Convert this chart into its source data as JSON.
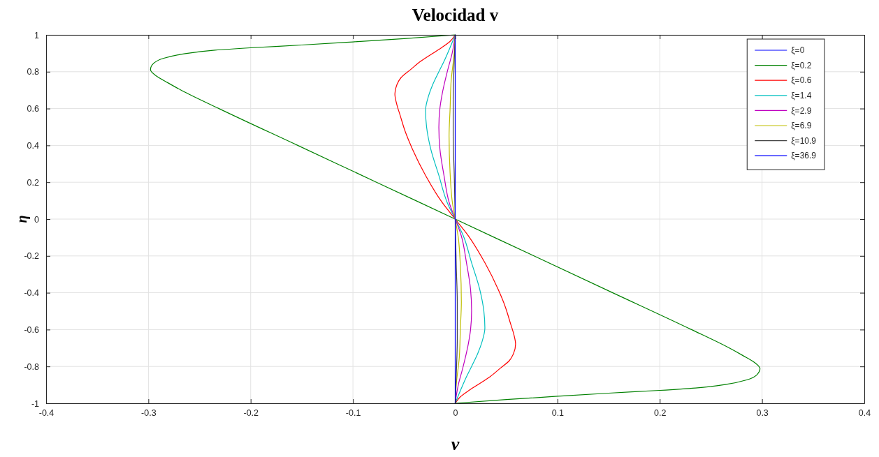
{
  "chart_data": {
    "type": "line",
    "title": "Velocidad v",
    "xlabel": "v",
    "ylabel": "η",
    "xlim": [
      -0.4,
      0.4
    ],
    "xticks": [
      -0.4,
      -0.3,
      -0.2,
      -0.1,
      0,
      0.1,
      0.2,
      0.3,
      0.4
    ],
    "ylim": [
      -1,
      1
    ],
    "yticks": [
      -1,
      -0.8,
      -0.6,
      -0.4,
      -0.2,
      0,
      0.2,
      0.4,
      0.6,
      0.8,
      1
    ],
    "grid": true,
    "legend": "top right",
    "series": [
      {
        "name": "ξ=0",
        "color": "#0000ff",
        "x": [
          null,
          null
        ],
        "values": [
          null,
          null
        ]
      },
      {
        "name": "ξ=0.2",
        "color": "#008000",
        "x": [
          0,
          -0.05,
          -0.1,
          -0.15,
          -0.2,
          -0.235,
          -0.265,
          -0.285,
          -0.295,
          -0.298,
          -0.293,
          -0.281,
          -0.268,
          -0.231,
          -0.154,
          -0.077,
          0,
          0.077,
          0.154,
          0.231,
          0.268,
          0.281,
          0.293,
          0.298,
          0.295,
          0.285,
          0.265,
          0.235,
          0.2,
          0.15,
          0.1,
          0.05,
          0
        ],
        "values": [
          1,
          0.98,
          0.962,
          0.945,
          0.93,
          0.917,
          0.897,
          0.873,
          0.845,
          0.812,
          0.78,
          0.74,
          0.7,
          0.6,
          0.4,
          0.2,
          0,
          -0.2,
          -0.4,
          -0.6,
          -0.7,
          -0.74,
          -0.78,
          -0.812,
          -0.845,
          -0.873,
          -0.897,
          -0.917,
          -0.93,
          -0.945,
          -0.962,
          -0.98,
          -1
        ]
      },
      {
        "name": "ξ=0.6",
        "color": "#ff0000",
        "x": [
          0,
          -0.005,
          -0.013,
          -0.022,
          -0.034,
          -0.044,
          -0.053,
          -0.057,
          -0.059,
          -0.057,
          -0.054,
          -0.049,
          -0.042,
          -0.029,
          -0.013,
          0,
          0.013,
          0.029,
          0.042,
          0.049,
          0.054,
          0.057,
          0.059,
          0.057,
          0.053,
          0.044,
          0.034,
          0.022,
          0.013,
          0.005,
          0
        ],
        "values": [
          1,
          0.965,
          0.932,
          0.9,
          0.856,
          0.81,
          0.768,
          0.73,
          0.679,
          0.62,
          0.566,
          0.477,
          0.382,
          0.237,
          0.092,
          0,
          -0.092,
          -0.237,
          -0.382,
          -0.477,
          -0.566,
          -0.62,
          -0.679,
          -0.73,
          -0.768,
          -0.81,
          -0.856,
          -0.9,
          -0.932,
          -0.965,
          -1
        ]
      },
      {
        "name": "ξ=1.4",
        "color": "#00bfbf",
        "x": [
          0,
          -0.005,
          -0.011,
          -0.016,
          -0.022,
          -0.026,
          -0.029,
          -0.028,
          -0.024,
          -0.016,
          -0.008,
          0,
          0.008,
          0.016,
          0.024,
          0.028,
          0.029,
          0.026,
          0.022,
          0.016,
          0.011,
          0.005,
          0
        ],
        "values": [
          1,
          0.932,
          0.856,
          0.8,
          0.73,
          0.67,
          0.591,
          0.5,
          0.382,
          0.237,
          0.092,
          0,
          -0.092,
          -0.237,
          -0.382,
          -0.5,
          -0.591,
          -0.67,
          -0.73,
          -0.8,
          -0.856,
          -0.932,
          -1
        ]
      },
      {
        "name": "ξ=2.9",
        "color": "#bf00bf",
        "x": [
          0,
          -0.003,
          -0.007,
          -0.013,
          -0.015,
          -0.016,
          -0.015,
          -0.011,
          -0.006,
          0,
          0.006,
          0.011,
          0.015,
          0.016,
          0.015,
          0.013,
          0.007,
          0.003,
          0
        ],
        "values": [
          1,
          0.9,
          0.817,
          0.672,
          0.6,
          0.498,
          0.382,
          0.237,
          0.092,
          0,
          -0.092,
          -0.237,
          -0.382,
          -0.498,
          -0.6,
          -0.672,
          -0.817,
          -0.9,
          -1
        ]
      },
      {
        "name": "ξ=6.9",
        "color": "#bfbf00",
        "x": [
          0,
          -0.001,
          -0.004,
          -0.005,
          -0.006,
          -0.005,
          -0.003,
          0,
          0.003,
          0.005,
          0.006,
          0.005,
          0.004,
          0.001,
          0
        ],
        "values": [
          1,
          0.9,
          0.75,
          0.6,
          0.45,
          0.25,
          0.1,
          0,
          -0.1,
          -0.25,
          -0.45,
          -0.6,
          -0.75,
          -0.9,
          -1
        ]
      },
      {
        "name": "ξ=10.9",
        "color": "#404040",
        "x": [
          0,
          -0.001,
          -0.002,
          -0.002,
          -0.001,
          0,
          0.001,
          0.002,
          0.002,
          0.001,
          0
        ],
        "values": [
          1,
          0.85,
          0.65,
          0.45,
          0.25,
          0,
          -0.25,
          -0.45,
          -0.65,
          -0.85,
          -1
        ]
      },
      {
        "name": "ξ=36.9",
        "color": "#0000ff",
        "x": [
          0,
          0,
          0
        ],
        "values": [
          1,
          0,
          -1
        ]
      }
    ]
  }
}
